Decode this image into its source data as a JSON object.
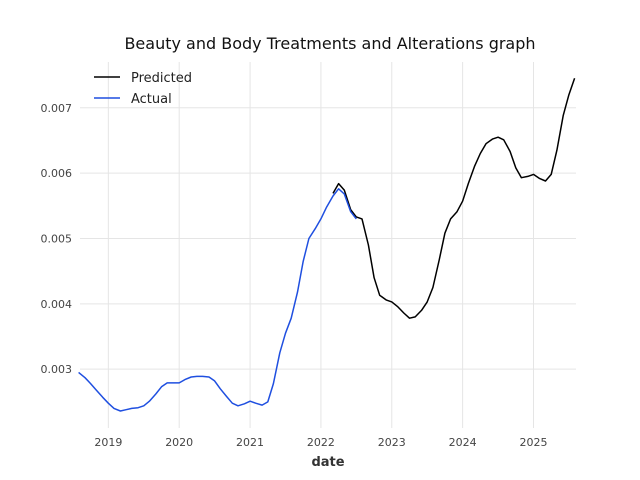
{
  "chart_data": {
    "type": "line",
    "title": "Beauty and Body Treatments and Alterations graph",
    "xlabel": "date",
    "ylabel": "",
    "xlim": [
      2018.6,
      2025.6
    ],
    "ylim": [
      0.0021,
      0.0077
    ],
    "xticks": [
      2019,
      2020,
      2021,
      2022,
      2023,
      2024,
      2025
    ],
    "xtick_labels": [
      "2019",
      "2020",
      "2021",
      "2022",
      "2023",
      "2024",
      "2025"
    ],
    "yticks": [
      0.003,
      0.004,
      0.005,
      0.006,
      0.007
    ],
    "ytick_labels": [
      "0.003",
      "0.004",
      "0.005",
      "0.006",
      "0.007"
    ],
    "grid": true,
    "legend_position": "top-left",
    "series": [
      {
        "name": "Predicted",
        "color": "#000000",
        "x": [
          2022.17,
          2022.25,
          2022.33,
          2022.42,
          2022.5,
          2022.58,
          2022.67,
          2022.75,
          2022.83,
          2022.92,
          2023.0,
          2023.08,
          2023.17,
          2023.25,
          2023.33,
          2023.42,
          2023.5,
          2023.58,
          2023.67,
          2023.75,
          2023.83,
          2023.92,
          2024.0,
          2024.08,
          2024.17,
          2024.25,
          2024.33,
          2024.42,
          2024.5,
          2024.58,
          2024.67,
          2024.75,
          2024.83,
          2024.92,
          2025.0,
          2025.08,
          2025.17,
          2025.25,
          2025.33,
          2025.42,
          2025.5,
          2025.58
        ],
        "y": [
          0.00569,
          0.00584,
          0.00574,
          0.00544,
          0.00533,
          0.0053,
          0.0049,
          0.0044,
          0.00413,
          0.00406,
          0.00403,
          0.00396,
          0.00386,
          0.00378,
          0.0038,
          0.0039,
          0.00403,
          0.00425,
          0.00467,
          0.00508,
          0.0053,
          0.00541,
          0.00557,
          0.00584,
          0.00611,
          0.0063,
          0.00645,
          0.00652,
          0.00655,
          0.00651,
          0.00633,
          0.00608,
          0.00593,
          0.00595,
          0.00598,
          0.00592,
          0.00588,
          0.00598,
          0.00635,
          0.00688,
          0.0072,
          0.00745
        ]
      },
      {
        "name": "Actual",
        "color": "#1f4fe0",
        "x": [
          2018.58,
          2018.67,
          2018.75,
          2018.83,
          2018.92,
          2019.0,
          2019.08,
          2019.17,
          2019.25,
          2019.33,
          2019.42,
          2019.5,
          2019.58,
          2019.67,
          2019.75,
          2019.83,
          2019.92,
          2020.0,
          2020.08,
          2020.17,
          2020.25,
          2020.33,
          2020.42,
          2020.5,
          2020.58,
          2020.67,
          2020.75,
          2020.83,
          2020.92,
          2021.0,
          2021.08,
          2021.17,
          2021.25,
          2021.33,
          2021.42,
          2021.5,
          2021.58,
          2021.67,
          2021.75,
          2021.83,
          2021.92,
          2022.0,
          2022.08,
          2022.17,
          2022.25,
          2022.33,
          2022.42,
          2022.5
        ],
        "y": [
          0.00295,
          0.00287,
          0.00278,
          0.00268,
          0.00257,
          0.00248,
          0.0024,
          0.00236,
          0.00238,
          0.0024,
          0.00241,
          0.00244,
          0.00251,
          0.00262,
          0.00273,
          0.00279,
          0.00279,
          0.00279,
          0.00284,
          0.00288,
          0.00289,
          0.00289,
          0.00288,
          0.00282,
          0.0027,
          0.00258,
          0.00248,
          0.00244,
          0.00247,
          0.00251,
          0.00248,
          0.00245,
          0.0025,
          0.00278,
          0.00325,
          0.00355,
          0.00378,
          0.00418,
          0.00465,
          0.005,
          0.00515,
          0.0053,
          0.00548,
          0.00565,
          0.00576,
          0.00568,
          0.00541,
          0.0053
        ]
      }
    ]
  }
}
